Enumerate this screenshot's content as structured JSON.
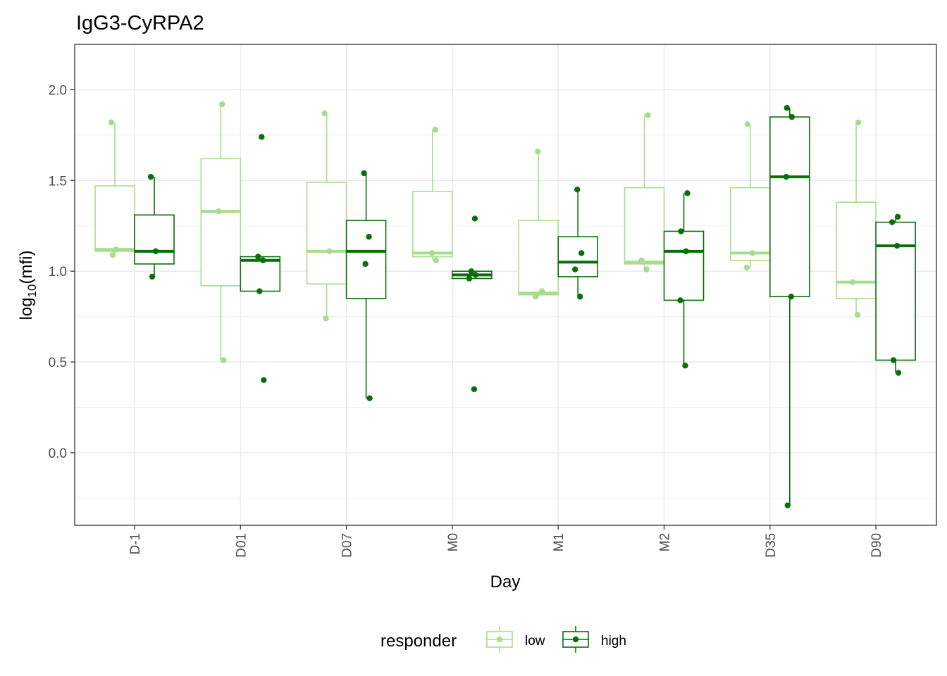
{
  "chart_data": {
    "type": "boxplot",
    "title": "IgG3-CyRPA2",
    "xlabel": "Day",
    "ylabel": {
      "base": "log",
      "subscript": "10",
      "inner": "mfi"
    },
    "categories": [
      "D-1",
      "D01",
      "D07",
      "M0",
      "M1",
      "M2",
      "D35",
      "D90"
    ],
    "ylim": [
      -0.4,
      2.25
    ],
    "yticks": [
      0.0,
      0.5,
      1.0,
      1.5,
      2.0
    ],
    "ytick_labels": [
      "0.0",
      "0.5",
      "1.0",
      "1.5",
      "2.0"
    ],
    "grid": true,
    "legend": {
      "title": "responder",
      "position": "bottom"
    },
    "series": [
      {
        "name": "low",
        "color": "#a8dc8c",
        "boxes": [
          {
            "q1": 1.11,
            "median": 1.12,
            "q3": 1.47,
            "whisker_low": 1.09,
            "whisker_high": 1.82,
            "points": [
              1.82,
              1.12,
              1.09
            ]
          },
          {
            "q1": 0.92,
            "median": 1.33,
            "q3": 1.62,
            "whisker_low": 0.51,
            "whisker_high": 1.92,
            "points": [
              1.92,
              1.33,
              0.51
            ]
          },
          {
            "q1": 0.93,
            "median": 1.11,
            "q3": 1.49,
            "whisker_low": 0.74,
            "whisker_high": 1.87,
            "points": [
              1.87,
              1.11,
              0.74
            ]
          },
          {
            "q1": 1.08,
            "median": 1.1,
            "q3": 1.44,
            "whisker_low": 1.06,
            "whisker_high": 1.78,
            "points": [
              1.78,
              1.1,
              1.06
            ]
          },
          {
            "q1": 0.87,
            "median": 0.88,
            "q3": 1.28,
            "whisker_low": 0.86,
            "whisker_high": 1.66,
            "points": [
              1.66,
              0.89,
              0.86
            ]
          },
          {
            "q1": 1.04,
            "median": 1.05,
            "q3": 1.46,
            "whisker_low": 1.01,
            "whisker_high": 1.86,
            "points": [
              1.86,
              1.06,
              1.01
            ]
          },
          {
            "q1": 1.06,
            "median": 1.1,
            "q3": 1.46,
            "whisker_low": 1.02,
            "whisker_high": 1.81,
            "points": [
              1.81,
              1.1,
              1.02
            ]
          },
          {
            "q1": 0.85,
            "median": 0.94,
            "q3": 1.38,
            "whisker_low": 0.76,
            "whisker_high": 1.82,
            "points": [
              1.82,
              0.94,
              0.76
            ]
          }
        ]
      },
      {
        "name": "high",
        "color": "#0a6e0a",
        "boxes": [
          {
            "q1": 1.04,
            "median": 1.11,
            "q3": 1.31,
            "whisker_low": 0.97,
            "whisker_high": 1.52,
            "points": [
              1.52,
              1.11,
              0.97
            ]
          },
          {
            "q1": 0.89,
            "median": 1.06,
            "q3": 1.08,
            "whisker_low": 0.89,
            "whisker_high": 1.08,
            "points": [
              1.74,
              1.08,
              1.06,
              0.89,
              0.4
            ]
          },
          {
            "q1": 0.85,
            "median": 1.11,
            "q3": 1.28,
            "whisker_low": 0.3,
            "whisker_high": 1.54,
            "points": [
              1.54,
              1.19,
              1.04,
              0.3
            ]
          },
          {
            "q1": 0.96,
            "median": 0.98,
            "q3": 1.0,
            "whisker_low": 0.96,
            "whisker_high": 1.0,
            "points": [
              1.29,
              1.0,
              0.98,
              0.96,
              0.35
            ]
          },
          {
            "q1": 0.97,
            "median": 1.05,
            "q3": 1.19,
            "whisker_low": 0.86,
            "whisker_high": 1.45,
            "points": [
              1.45,
              1.1,
              1.01,
              0.86
            ]
          },
          {
            "q1": 0.84,
            "median": 1.11,
            "q3": 1.22,
            "whisker_low": 0.48,
            "whisker_high": 1.43,
            "points": [
              1.43,
              1.22,
              1.11,
              0.84,
              0.48
            ]
          },
          {
            "q1": 0.86,
            "median": 1.52,
            "q3": 1.85,
            "whisker_low": -0.29,
            "whisker_high": 1.9,
            "points": [
              1.9,
              1.85,
              1.52,
              0.86,
              -0.29
            ]
          },
          {
            "q1": 0.51,
            "median": 1.14,
            "q3": 1.27,
            "whisker_low": 0.44,
            "whisker_high": 1.3,
            "points": [
              1.3,
              1.27,
              1.14,
              0.51,
              0.44
            ]
          }
        ]
      }
    ]
  }
}
